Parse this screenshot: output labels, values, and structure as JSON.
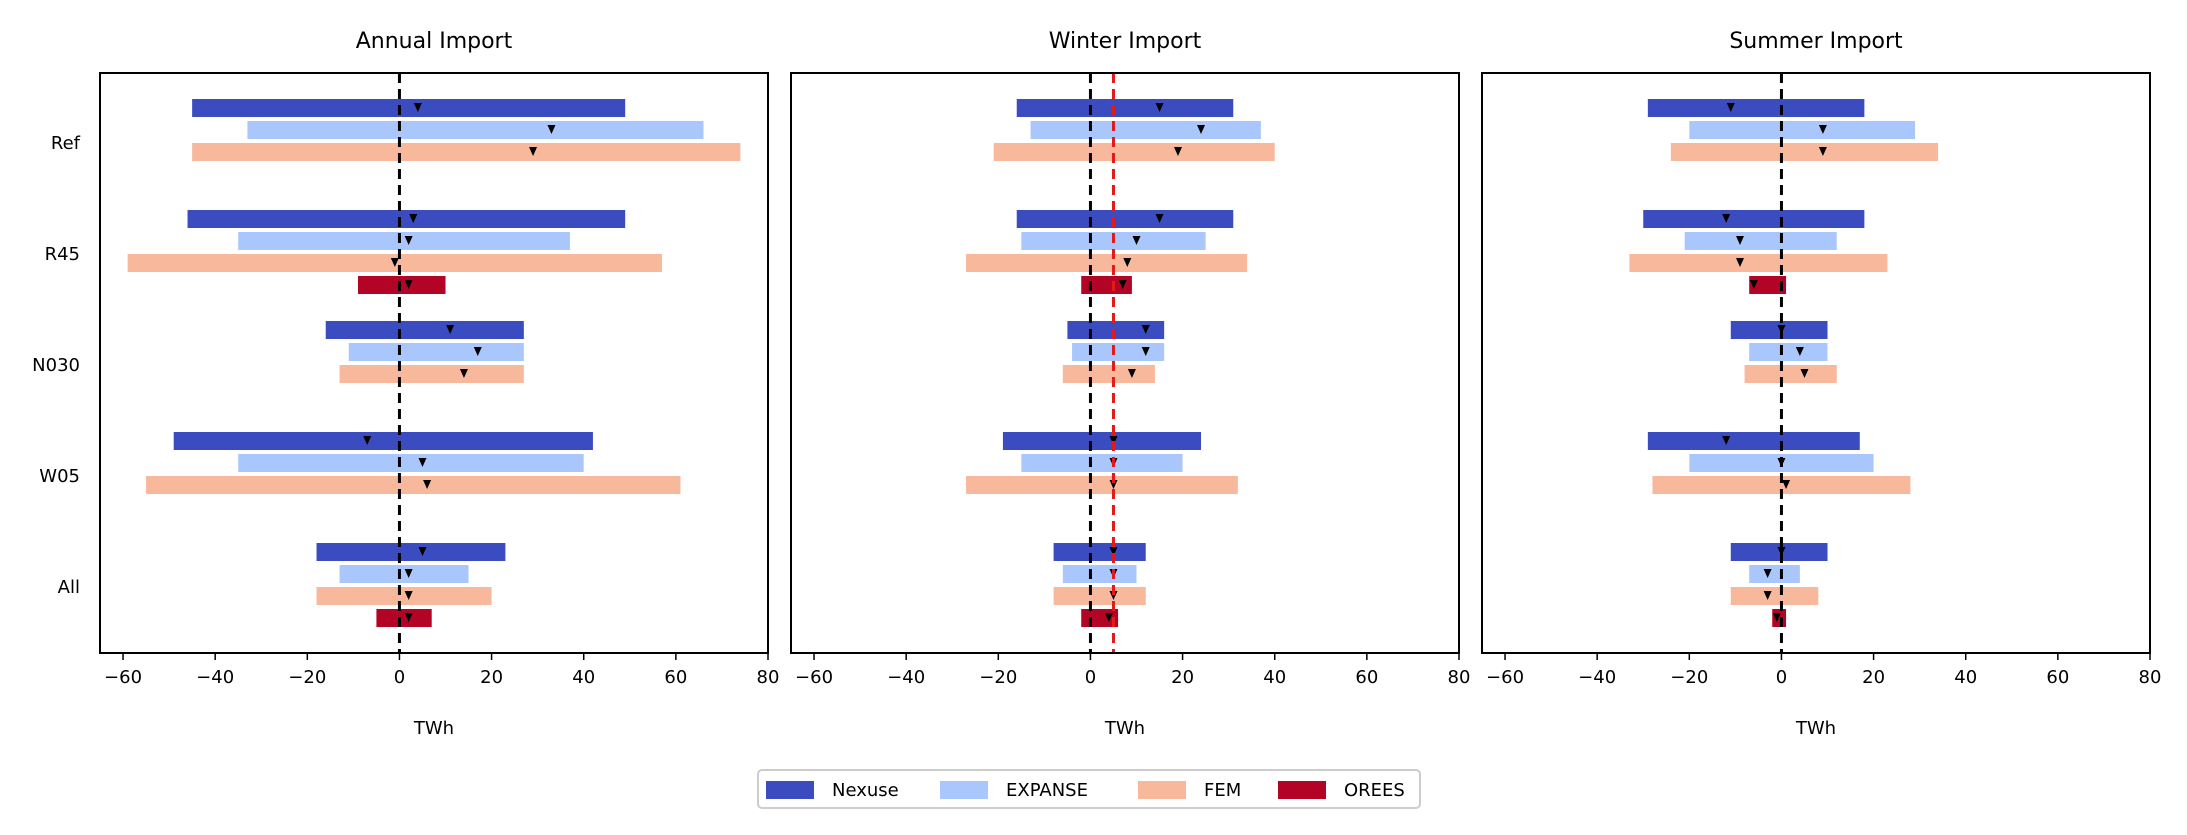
{
  "chart_data": {
    "type": "bar",
    "orientation": "horizontal-range",
    "categories": [
      "Ref",
      "R45",
      "N030",
      "W05",
      "All"
    ],
    "xlabel": "TWh",
    "xlim": [
      -65,
      80
    ],
    "xticks": [
      -60,
      -40,
      -20,
      0,
      20,
      40,
      60,
      80
    ],
    "xtick_labels": [
      "−60",
      "−40",
      "−20",
      "0",
      "20",
      "40",
      "60",
      "80"
    ],
    "models": [
      {
        "name": "Nexuse",
        "color": "#3b4cc0"
      },
      {
        "name": "EXPANSE",
        "color": "#aac7fd"
      },
      {
        "name": "FEM",
        "color": "#f7b89c"
      },
      {
        "name": "OREES",
        "color": "#b40426"
      }
    ],
    "legend": {
      "position": "bottom-center",
      "labels": [
        "Nexuse",
        "EXPANSE",
        "FEM",
        "OREES"
      ]
    },
    "panels": [
      {
        "title": "Annual Import",
        "refline_black": 0,
        "refline_red": null,
        "bars": [
          {
            "category": "Ref",
            "model": "Nexuse",
            "min": -45,
            "max": 49,
            "marker": 4
          },
          {
            "category": "Ref",
            "model": "EXPANSE",
            "min": -33,
            "max": 66,
            "marker": 33
          },
          {
            "category": "Ref",
            "model": "FEM",
            "min": -45,
            "max": 74,
            "marker": 29
          },
          {
            "category": "R45",
            "model": "Nexuse",
            "min": -46,
            "max": 49,
            "marker": 3
          },
          {
            "category": "R45",
            "model": "EXPANSE",
            "min": -35,
            "max": 37,
            "marker": 2
          },
          {
            "category": "R45",
            "model": "FEM",
            "min": -59,
            "max": 57,
            "marker": -1
          },
          {
            "category": "R45",
            "model": "OREES",
            "min": -9,
            "max": 10,
            "marker": 2
          },
          {
            "category": "N030",
            "model": "Nexuse",
            "min": -16,
            "max": 27,
            "marker": 11
          },
          {
            "category": "N030",
            "model": "EXPANSE",
            "min": -11,
            "max": 27,
            "marker": 17
          },
          {
            "category": "N030",
            "model": "FEM",
            "min": -13,
            "max": 27,
            "marker": 14
          },
          {
            "category": "W05",
            "model": "Nexuse",
            "min": -49,
            "max": 42,
            "marker": -7
          },
          {
            "category": "W05",
            "model": "EXPANSE",
            "min": -35,
            "max": 40,
            "marker": 5
          },
          {
            "category": "W05",
            "model": "FEM",
            "min": -55,
            "max": 61,
            "marker": 6
          },
          {
            "category": "All",
            "model": "Nexuse",
            "min": -18,
            "max": 23,
            "marker": 5
          },
          {
            "category": "All",
            "model": "EXPANSE",
            "min": -13,
            "max": 15,
            "marker": 2
          },
          {
            "category": "All",
            "model": "FEM",
            "min": -18,
            "max": 20,
            "marker": 2
          },
          {
            "category": "All",
            "model": "OREES",
            "min": -5,
            "max": 7,
            "marker": 2
          }
        ]
      },
      {
        "title": "Winter Import",
        "refline_black": 0,
        "refline_red": 5,
        "bars": [
          {
            "category": "Ref",
            "model": "Nexuse",
            "min": -16,
            "max": 31,
            "marker": 15
          },
          {
            "category": "Ref",
            "model": "EXPANSE",
            "min": -13,
            "max": 37,
            "marker": 24
          },
          {
            "category": "Ref",
            "model": "FEM",
            "min": -21,
            "max": 40,
            "marker": 19
          },
          {
            "category": "R45",
            "model": "Nexuse",
            "min": -16,
            "max": 31,
            "marker": 15
          },
          {
            "category": "R45",
            "model": "EXPANSE",
            "min": -15,
            "max": 25,
            "marker": 10
          },
          {
            "category": "R45",
            "model": "FEM",
            "min": -27,
            "max": 34,
            "marker": 8
          },
          {
            "category": "R45",
            "model": "OREES",
            "min": -2,
            "max": 9,
            "marker": 7
          },
          {
            "category": "N030",
            "model": "Nexuse",
            "min": -5,
            "max": 16,
            "marker": 12
          },
          {
            "category": "N030",
            "model": "EXPANSE",
            "min": -4,
            "max": 16,
            "marker": 12
          },
          {
            "category": "N030",
            "model": "FEM",
            "min": -6,
            "max": 14,
            "marker": 9
          },
          {
            "category": "W05",
            "model": "Nexuse",
            "min": -19,
            "max": 24,
            "marker": 5
          },
          {
            "category": "W05",
            "model": "EXPANSE",
            "min": -15,
            "max": 20,
            "marker": 5
          },
          {
            "category": "W05",
            "model": "FEM",
            "min": -27,
            "max": 32,
            "marker": 5
          },
          {
            "category": "All",
            "model": "Nexuse",
            "min": -8,
            "max": 12,
            "marker": 5
          },
          {
            "category": "All",
            "model": "EXPANSE",
            "min": -6,
            "max": 10,
            "marker": 5
          },
          {
            "category": "All",
            "model": "FEM",
            "min": -8,
            "max": 12,
            "marker": 5
          },
          {
            "category": "All",
            "model": "OREES",
            "min": -2,
            "max": 6,
            "marker": 4
          }
        ]
      },
      {
        "title": "Summer Import",
        "refline_black": 0,
        "refline_red": null,
        "bars": [
          {
            "category": "Ref",
            "model": "Nexuse",
            "min": -29,
            "max": 18,
            "marker": -11
          },
          {
            "category": "Ref",
            "model": "EXPANSE",
            "min": -20,
            "max": 29,
            "marker": 9
          },
          {
            "category": "Ref",
            "model": "FEM",
            "min": -24,
            "max": 34,
            "marker": 9
          },
          {
            "category": "R45",
            "model": "Nexuse",
            "min": -30,
            "max": 18,
            "marker": -12
          },
          {
            "category": "R45",
            "model": "EXPANSE",
            "min": -21,
            "max": 12,
            "marker": -9
          },
          {
            "category": "R45",
            "model": "FEM",
            "min": -33,
            "max": 23,
            "marker": -9
          },
          {
            "category": "R45",
            "model": "OREES",
            "min": -7,
            "max": 1,
            "marker": -6
          },
          {
            "category": "N030",
            "model": "Nexuse",
            "min": -11,
            "max": 10,
            "marker": 0
          },
          {
            "category": "N030",
            "model": "EXPANSE",
            "min": -7,
            "max": 10,
            "marker": 4
          },
          {
            "category": "N030",
            "model": "FEM",
            "min": -8,
            "max": 12,
            "marker": 5
          },
          {
            "category": "W05",
            "model": "Nexuse",
            "min": -29,
            "max": 17,
            "marker": -12
          },
          {
            "category": "W05",
            "model": "EXPANSE",
            "min": -20,
            "max": 20,
            "marker": 0
          },
          {
            "category": "W05",
            "model": "FEM",
            "min": -28,
            "max": 28,
            "marker": 1
          },
          {
            "category": "All",
            "model": "Nexuse",
            "min": -11,
            "max": 10,
            "marker": 0
          },
          {
            "category": "All",
            "model": "EXPANSE",
            "min": -7,
            "max": 4,
            "marker": -3
          },
          {
            "category": "All",
            "model": "FEM",
            "min": -11,
            "max": 8,
            "marker": -3
          },
          {
            "category": "All",
            "model": "OREES",
            "min": -2,
            "max": 1,
            "marker": -1
          }
        ]
      }
    ]
  }
}
